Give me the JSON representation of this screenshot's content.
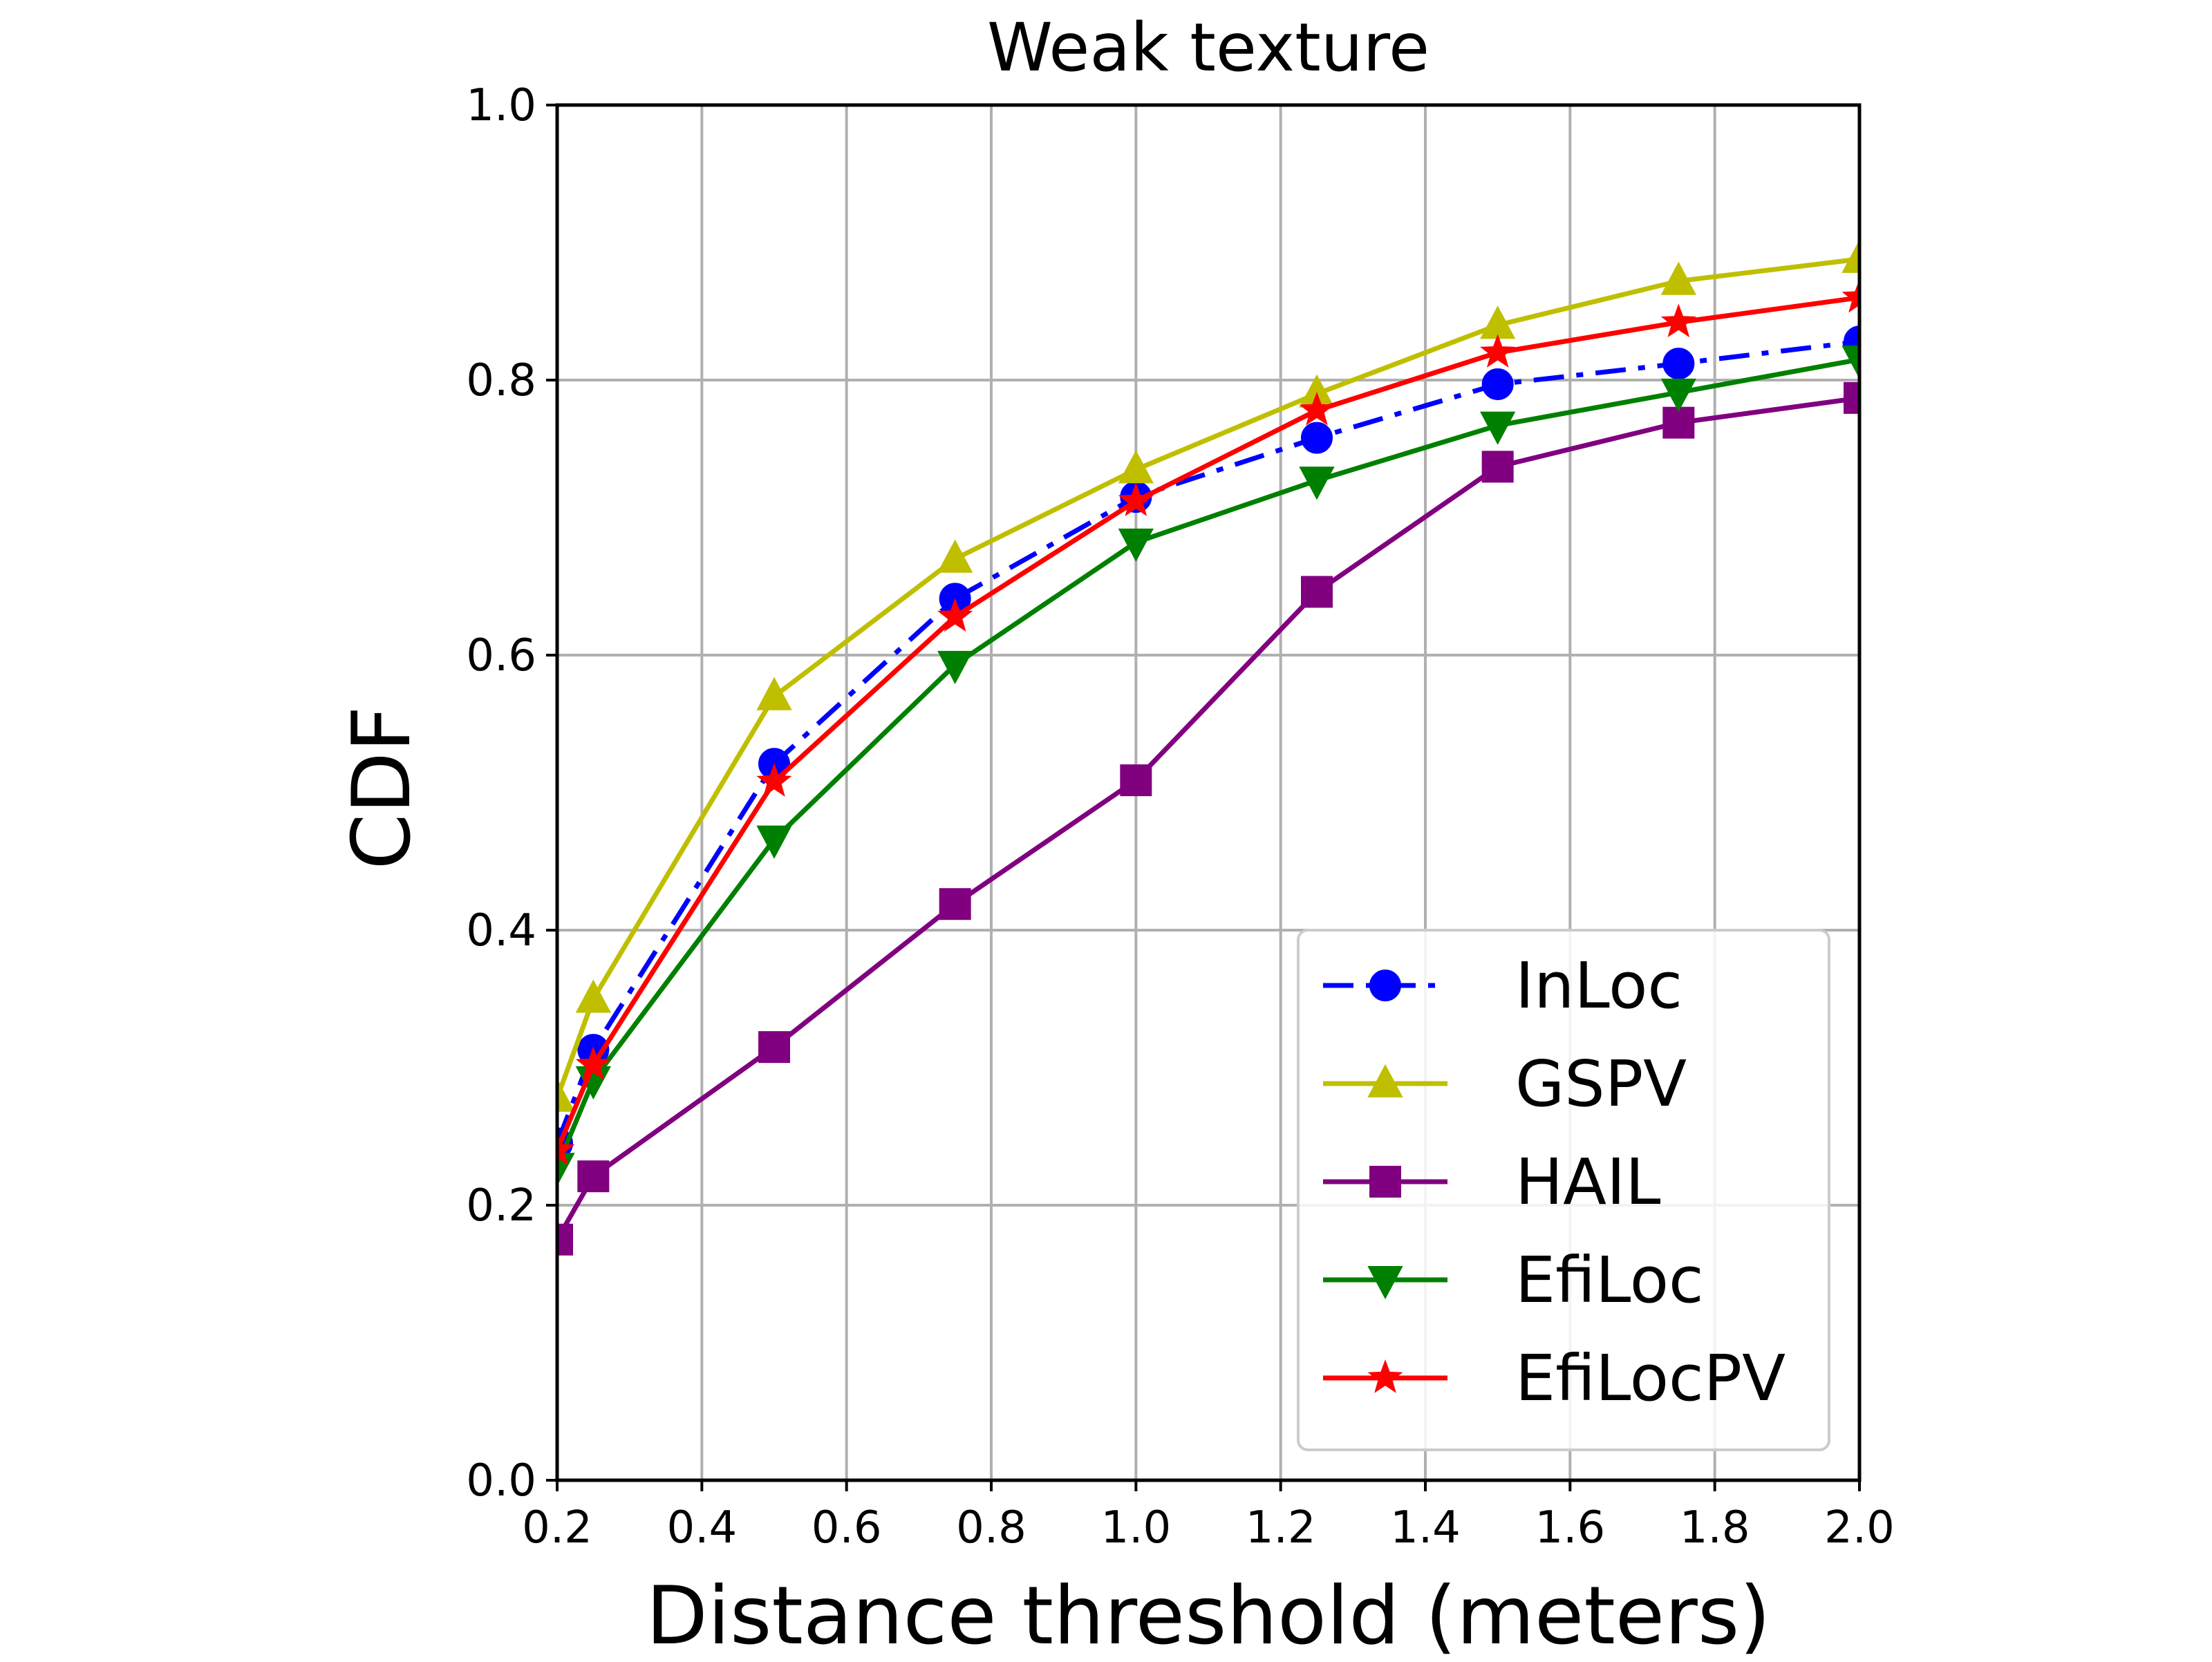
{
  "chart_data": {
    "type": "line",
    "title": "Weak texture",
    "xlabel": "Distance threshold (meters)",
    "ylabel": "CDF",
    "xlim": [
      0.2,
      2.0
    ],
    "ylim": [
      0.0,
      1.0
    ],
    "x_ticks": [
      "0.2",
      "0.4",
      "0.6",
      "0.8",
      "1.0",
      "1.2",
      "1.4",
      "1.6",
      "1.8",
      "2.0"
    ],
    "y_ticks": [
      "0.0",
      "0.2",
      "0.4",
      "0.6",
      "0.8",
      "1.0"
    ],
    "grid": true,
    "legend_position": "lower-right",
    "series": [
      {
        "name": "InLoc",
        "color": "#0000ff",
        "marker": "circle",
        "line_style": "dashdot",
        "x": [
          0.2,
          0.25,
          0.5,
          0.75,
          1.0,
          1.25,
          1.5,
          1.75,
          2.0
        ],
        "y": [
          0.245,
          0.313,
          0.521,
          0.641,
          0.715,
          0.758,
          0.797,
          0.812,
          0.828
        ]
      },
      {
        "name": "GSPV",
        "color": "#bfbf00",
        "marker": "triangle-up",
        "line_style": "solid",
        "x": [
          0.2,
          0.25,
          0.5,
          0.75,
          1.0,
          1.25,
          1.5,
          1.75,
          2.0
        ],
        "y": [
          0.278,
          0.35,
          0.57,
          0.67,
          0.735,
          0.79,
          0.84,
          0.872,
          0.888
        ]
      },
      {
        "name": "HAIL",
        "color": "#800080",
        "marker": "square",
        "line_style": "solid",
        "x": [
          0.2,
          0.25,
          0.5,
          0.75,
          1.0,
          1.25,
          1.5,
          1.75,
          2.0
        ],
        "y": [
          0.175,
          0.221,
          0.315,
          0.419,
          0.509,
          0.646,
          0.737,
          0.769,
          0.787
        ]
      },
      {
        "name": "EfiLoc",
        "color": "#008000",
        "marker": "triangle-down",
        "line_style": "solid",
        "x": [
          0.2,
          0.25,
          0.5,
          0.75,
          1.0,
          1.25,
          1.5,
          1.75,
          2.0
        ],
        "y": [
          0.228,
          0.291,
          0.466,
          0.593,
          0.682,
          0.727,
          0.767,
          0.791,
          0.815
        ]
      },
      {
        "name": "EfiLocPV",
        "color": "#ff0000",
        "marker": "star",
        "line_style": "solid",
        "x": [
          0.2,
          0.25,
          0.5,
          0.75,
          1.0,
          1.25,
          1.5,
          1.75,
          2.0
        ],
        "y": [
          0.24,
          0.302,
          0.508,
          0.628,
          0.712,
          0.778,
          0.82,
          0.842,
          0.86
        ]
      }
    ]
  }
}
